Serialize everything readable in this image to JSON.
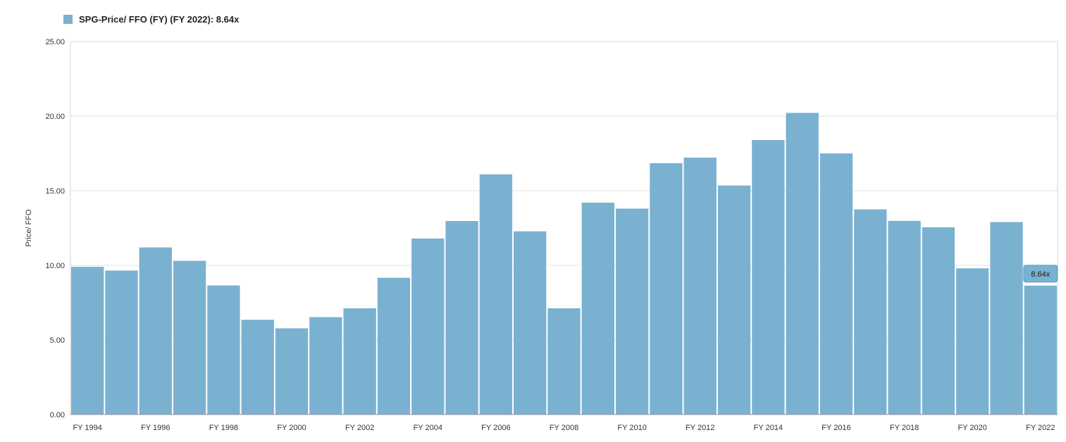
{
  "legend": {
    "text": "SPG-Price/ FFO (FY) (FY 2022): 8.64x",
    "color": "#7ab1d1"
  },
  "chart_data": {
    "type": "bar",
    "ylabel": "Price/ FFO",
    "ylim": [
      0,
      25
    ],
    "yticks": [
      "0.00",
      "5.00",
      "10.00",
      "15.00",
      "20.00",
      "25.00"
    ],
    "grid": true,
    "bar_color": "#7ab1d1",
    "categories": [
      "FY 1994",
      "FY 1995",
      "FY 1996",
      "FY 1997",
      "FY 1998",
      "FY 1999",
      "FY 2000",
      "FY 2001",
      "FY 2002",
      "FY 2003",
      "FY 2004",
      "FY 2005",
      "FY 2006",
      "FY 2007",
      "FY 2008",
      "FY 2009",
      "FY 2010",
      "FY 2011",
      "FY 2012",
      "FY 2013",
      "FY 2014",
      "FY 2015",
      "FY 2016",
      "FY 2017",
      "FY 2018",
      "FY 2019",
      "FY 2020",
      "FY 2021",
      "FY 2022"
    ],
    "xtick_labels": [
      "FY 1994",
      "",
      "FY 1996",
      "",
      "FY 1998",
      "",
      "FY 2000",
      "",
      "FY 2002",
      "",
      "FY 2004",
      "",
      "FY 2006",
      "",
      "FY 2008",
      "",
      "FY 2010",
      "",
      "FY 2012",
      "",
      "FY 2014",
      "",
      "FY 2016",
      "",
      "FY 2018",
      "",
      "FY 2020",
      "",
      "FY 2022"
    ],
    "values": [
      9.9,
      9.65,
      11.2,
      10.3,
      8.65,
      6.35,
      5.78,
      6.53,
      7.12,
      9.17,
      11.8,
      12.97,
      16.1,
      12.28,
      7.12,
      14.2,
      13.8,
      16.85,
      17.22,
      15.35,
      18.4,
      20.22,
      17.5,
      13.75,
      12.98,
      12.55,
      9.8,
      12.9,
      8.64
    ],
    "callout": {
      "text": "8.64x",
      "value": 8.64
    }
  }
}
